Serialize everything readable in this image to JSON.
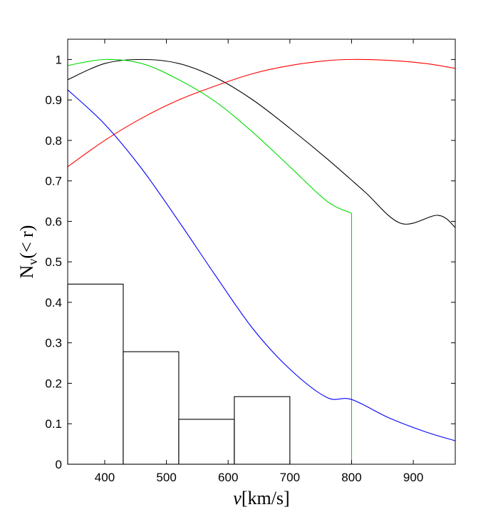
{
  "chart_data": {
    "type": "line",
    "title": "",
    "xlabel": "v[km/s]",
    "ylabel": "N_v(< r)",
    "xlim": [
      340,
      968
    ],
    "ylim": [
      0,
      1.05
    ],
    "xticks": [
      400,
      500,
      600,
      700,
      800,
      900
    ],
    "yticks": [
      0,
      0.1,
      0.2,
      0.3,
      0.4,
      0.5,
      0.6,
      0.7,
      0.8,
      0.9,
      1
    ],
    "grid": false,
    "legend": "none",
    "series": [
      {
        "color": "#000000",
        "x": [
          340,
          400,
          460,
          520,
          580,
          640,
          700,
          760,
          820,
          880,
          940,
          968
        ],
        "y": [
          0.95,
          0.99,
          1.0,
          0.99,
          0.955,
          0.9,
          0.83,
          0.755,
          0.675,
          0.595,
          0.615,
          0.585
        ]
      },
      {
        "color": "#ff0000",
        "x": [
          340,
          400,
          460,
          520,
          580,
          640,
          700,
          760,
          800,
          860,
          920,
          968
        ],
        "y": [
          0.735,
          0.8,
          0.855,
          0.9,
          0.935,
          0.965,
          0.985,
          0.997,
          1.0,
          0.998,
          0.99,
          0.978
        ]
      },
      {
        "color": "#00dd00",
        "x": [
          340,
          400,
          460,
          520,
          580,
          640,
          700,
          760,
          800,
          800
        ],
        "y": [
          0.985,
          1.0,
          0.99,
          0.95,
          0.895,
          0.82,
          0.735,
          0.65,
          0.62,
          0.0
        ]
      },
      {
        "color": "#0000ff",
        "x": [
          340,
          400,
          460,
          520,
          580,
          640,
          700,
          760,
          800,
          860,
          920,
          968
        ],
        "y": [
          0.925,
          0.84,
          0.73,
          0.6,
          0.465,
          0.335,
          0.235,
          0.165,
          0.16,
          0.115,
          0.08,
          0.058
        ]
      }
    ],
    "histogram": {
      "color": "#000000",
      "bins": [
        {
          "x0": 340,
          "x1": 430,
          "value": 0.445
        },
        {
          "x0": 430,
          "x1": 520,
          "value": 0.278
        },
        {
          "x0": 520,
          "x1": 610,
          "value": 0.111
        },
        {
          "x0": 610,
          "x1": 700,
          "value": 0.167
        }
      ]
    }
  }
}
